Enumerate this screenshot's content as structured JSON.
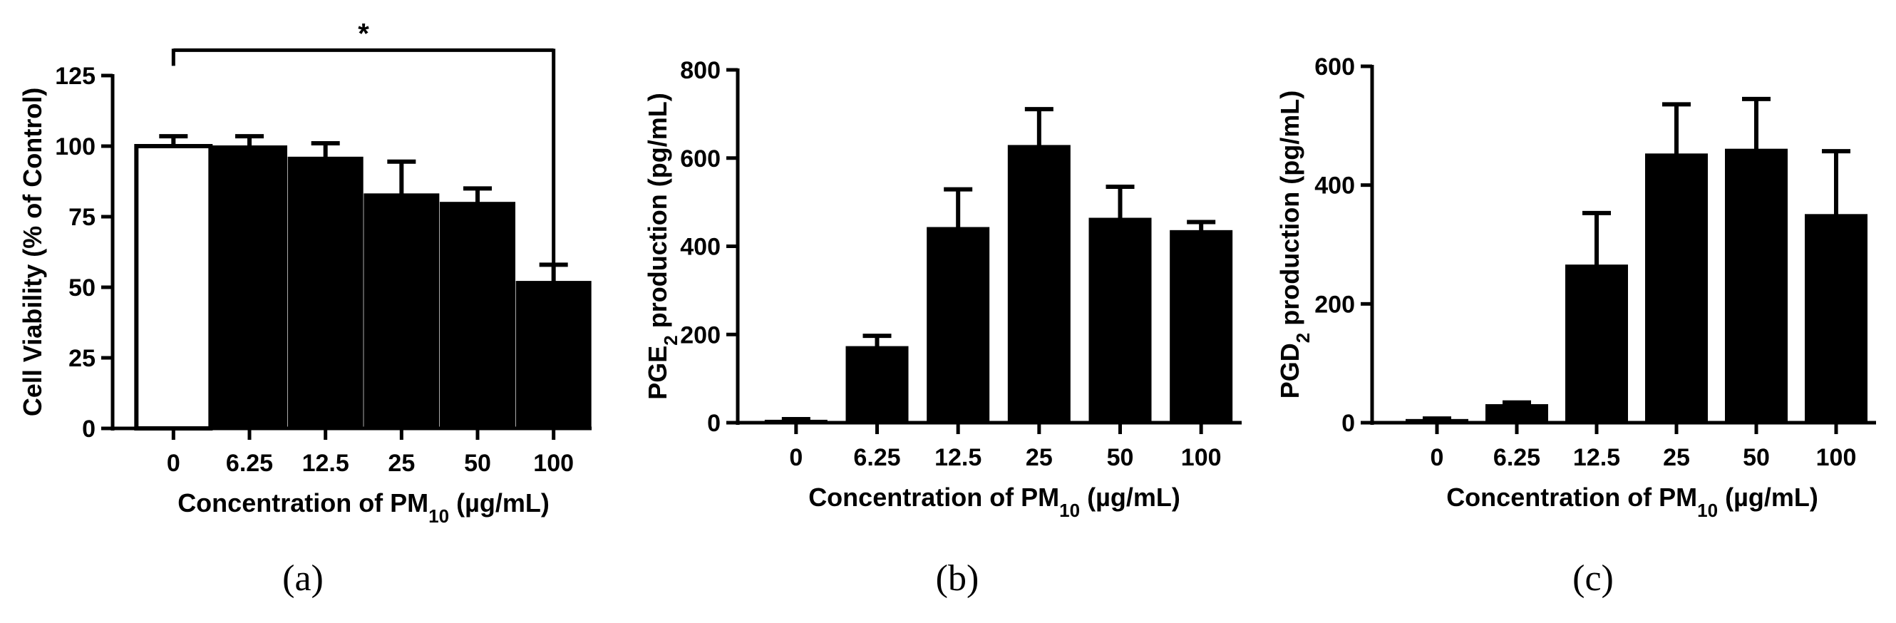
{
  "chart_data": [
    {
      "type": "bar",
      "panel_label": "(a)",
      "categories": [
        "0",
        "6.25",
        "12.5",
        "25",
        "50",
        "100"
      ],
      "values": [
        100,
        100,
        96,
        83,
        80,
        52
      ],
      "errors": [
        3.5,
        3.5,
        5,
        11.5,
        5,
        6
      ],
      "bar_fills": [
        "#ffffff",
        "#000000",
        "#000000",
        "#000000",
        "#000000",
        "#000000"
      ],
      "ylim": [
        0,
        125
      ],
      "yticks": [
        0,
        25,
        50,
        75,
        100,
        125
      ],
      "ylabel": "Cell Viability (% of Control)",
      "xlabel": {
        "main": "Concentration of PM",
        "sub": "10",
        "unit": " (µg/mL)"
      },
      "significance": {
        "from": 0,
        "to": 5,
        "y": 134,
        "label": "*"
      }
    },
    {
      "type": "bar",
      "panel_label": "(b)",
      "categories": [
        "0",
        "6.25",
        "12.5",
        "25",
        "50",
        "100"
      ],
      "values": [
        5,
        172,
        442,
        628,
        463,
        435
      ],
      "errors": [
        3,
        25,
        87,
        83,
        72,
        20
      ],
      "bar_fills": [
        "#000000",
        "#000000",
        "#000000",
        "#000000",
        "#000000",
        "#000000"
      ],
      "ylim": [
        0,
        800
      ],
      "yticks": [
        0,
        200,
        400,
        600,
        800
      ],
      "ylabel": {
        "main": "PGE",
        "sub": "2",
        "rest": " production (pg/mL)"
      },
      "xlabel": {
        "main": "Concentration of PM",
        "sub": "10",
        "unit": " (µg/mL)"
      }
    },
    {
      "type": "bar",
      "panel_label": "(c)",
      "categories": [
        "0",
        "6.25",
        "12.5",
        "25",
        "50",
        "100"
      ],
      "values": [
        5,
        30,
        265,
        452,
        460,
        350
      ],
      "errors": [
        2,
        4,
        88,
        84,
        85,
        107
      ],
      "bar_fills": [
        "#000000",
        "#000000",
        "#000000",
        "#000000",
        "#000000",
        "#000000"
      ],
      "ylim": [
        0,
        600
      ],
      "yticks": [
        0,
        200,
        400,
        600
      ],
      "ylabel": {
        "main": "PGD",
        "sub": "2",
        "rest": " production (pg/mL)"
      },
      "xlabel": {
        "main": "Concentration of PM",
        "sub": "10",
        "unit": " (µg/mL)"
      }
    }
  ]
}
